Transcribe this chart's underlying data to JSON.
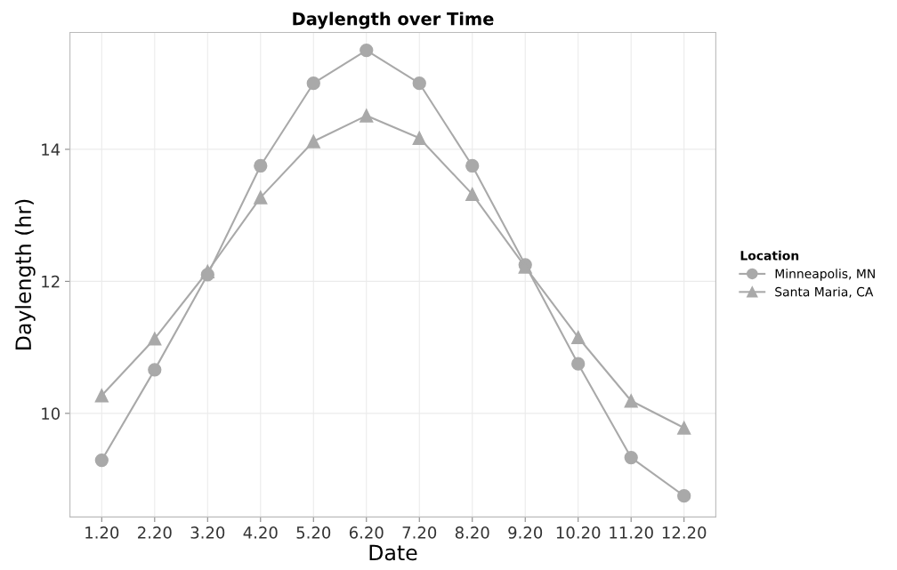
{
  "chart_data": {
    "type": "line",
    "title": "Daylength over Time",
    "xlabel": "Date",
    "ylabel": "Daylength (hr)",
    "legend_title": "Location",
    "categories": [
      "1.20",
      "2.20",
      "3.20",
      "4.20",
      "5.20",
      "6.20",
      "7.20",
      "8.20",
      "9.20",
      "10.20",
      "11.20",
      "12.20"
    ],
    "series": [
      {
        "name": "Minneapolis, MN",
        "color": "#a9a9a9",
        "marker": "circle",
        "values": [
          9.29,
          10.66,
          12.1,
          13.75,
          15.0,
          15.5,
          15.0,
          13.75,
          12.25,
          10.75,
          9.33,
          8.75
        ]
      },
      {
        "name": "Santa Maria, CA",
        "color": "#a9a9a9",
        "marker": "triangle",
        "values": [
          10.27,
          11.13,
          12.15,
          13.27,
          14.12,
          14.51,
          14.17,
          13.32,
          12.22,
          11.15,
          10.19,
          9.78
        ]
      }
    ],
    "ylim": [
      8.43,
      15.77
    ],
    "yticks": [
      10,
      12,
      14
    ],
    "grid": true,
    "legend": "right",
    "line_style": "solid"
  }
}
